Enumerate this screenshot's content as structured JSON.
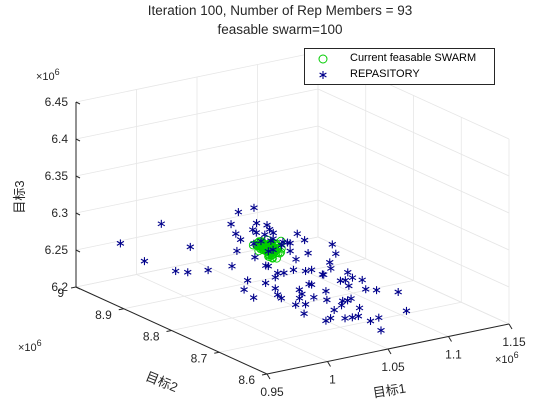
{
  "chart_data": {
    "type": "scatter",
    "view": "3d",
    "title": [
      "Iteration 100, Number of Rep Members = 93",
      "feasable swarm=100"
    ],
    "xlabel": "目标1",
    "ylabel": "目标2",
    "zlabel": "目标3",
    "x_multiplier": "×10^6",
    "y_multiplier": "×10^6",
    "z_multiplier": "×10^6",
    "xlim": [
      0.95,
      1.15
    ],
    "ylim": [
      8.6,
      9.0
    ],
    "zlim": [
      6.2,
      6.45
    ],
    "x_ticks": [
      "0.95",
      "1",
      "1.05",
      "1.1",
      "1.15"
    ],
    "y_ticks": [
      "8.6",
      "8.7",
      "8.8",
      "8.9",
      "9"
    ],
    "z_ticks": [
      "6.2",
      "6.25",
      "6.3",
      "6.35",
      "6.4",
      "6.45"
    ],
    "grid": true,
    "legend_position": "top-right",
    "series": [
      {
        "name": "Current feasable SWARM",
        "marker": "circle",
        "color": "#00cc00",
        "points": [
          [
            1.0384,
            8.7947,
            6.2926
          ],
          [
            1.0331,
            8.8039,
            6.2759
          ],
          [
            1.0277,
            8.7928,
            6.2793
          ],
          [
            1.0305,
            8.8154,
            6.2886
          ],
          [
            1.0309,
            8.8238,
            6.2845
          ],
          [
            1.0283,
            8.7888,
            6.2785
          ],
          [
            1.0349,
            8.8136,
            6.2753
          ],
          [
            1.0307,
            8.8173,
            6.2823
          ],
          [
            1.0275,
            8.8096,
            6.2912
          ],
          [
            1.0336,
            8.8204,
            6.2845
          ],
          [
            1.0371,
            8.7904,
            6.2842
          ],
          [
            1.0325,
            8.7936,
            6.2819
          ],
          [
            1.0267,
            8.8076,
            6.285
          ],
          [
            1.0363,
            8.8008,
            6.2866
          ],
          [
            1.0289,
            8.8188,
            6.2827
          ],
          [
            1.0291,
            8.8092,
            6.282
          ],
          [
            1.0253,
            8.8199,
            6.284
          ],
          [
            1.03,
            8.8158,
            6.2783
          ],
          [
            1.0326,
            8.7802,
            6.2838
          ],
          [
            1.0301,
            8.8165,
            6.2835
          ],
          [
            1.0262,
            8.7813,
            6.2772
          ],
          [
            1.0327,
            8.8124,
            6.2808
          ],
          [
            1.0337,
            8.8047,
            6.2856
          ],
          [
            1.0312,
            8.8018,
            6.274
          ],
          [
            1.0308,
            8.8018,
            6.2722
          ],
          [
            1.0332,
            8.8191,
            6.2811
          ],
          [
            1.0355,
            8.7999,
            6.2809
          ],
          [
            1.0314,
            8.8037,
            6.2856
          ],
          [
            1.0279,
            8.7865,
            6.2763
          ],
          [
            1.0294,
            8.7977,
            6.2905
          ],
          [
            1.0286,
            8.8087,
            6.2853
          ],
          [
            1.0317,
            8.8051,
            6.2799
          ],
          [
            1.0348,
            8.7996,
            6.2792
          ],
          [
            1.0302,
            8.8109,
            6.2851
          ],
          [
            1.03,
            8.8124,
            6.2862
          ],
          [
            1.0283,
            8.8038,
            6.2831
          ],
          [
            1.032,
            8.805,
            6.2871
          ],
          [
            1.0311,
            8.8024,
            6.2872
          ],
          [
            1.0305,
            8.7963,
            6.2797
          ],
          [
            1.0276,
            8.8186,
            6.2837
          ],
          [
            1.0316,
            8.8087,
            6.2771
          ],
          [
            1.0298,
            8.7997,
            6.279
          ],
          [
            1.0305,
            8.7836,
            6.2751
          ],
          [
            1.0302,
            8.8109,
            6.2788
          ],
          [
            1.0304,
            8.8028,
            6.2814
          ],
          [
            1.0337,
            8.7908,
            6.2855
          ],
          [
            1.0361,
            8.8093,
            6.2867
          ],
          [
            1.0319,
            8.8103,
            6.2779
          ],
          [
            1.0265,
            8.8007,
            6.2827
          ],
          [
            1.0287,
            8.8068,
            6.2802
          ],
          [
            1.036,
            8.7957,
            6.2868
          ],
          [
            1.0317,
            8.807,
            6.2823
          ],
          [
            1.036,
            8.8031,
            6.2774
          ],
          [
            1.0331,
            8.806,
            6.2758
          ],
          [
            1.0288,
            8.7987,
            6.2817
          ],
          [
            1.0325,
            8.7966,
            6.2844
          ],
          [
            1.0337,
            8.8075,
            6.2799
          ],
          [
            1.0336,
            8.7848,
            6.2804
          ],
          [
            1.0242,
            8.8048,
            6.2889
          ],
          [
            1.0311,
            8.7895,
            6.2823
          ],
          [
            1.0338,
            8.8069,
            6.2793
          ],
          [
            1.0302,
            8.8108,
            6.2851
          ],
          [
            1.0317,
            8.7882,
            6.2837
          ],
          [
            1.0314,
            8.8066,
            6.2814
          ],
          [
            1.0345,
            8.8029,
            6.287
          ],
          [
            1.0323,
            8.7849,
            6.2818
          ],
          [
            1.0298,
            8.7898,
            6.2791
          ],
          [
            1.0317,
            8.7985,
            6.2858
          ],
          [
            1.031,
            8.798,
            6.2897
          ],
          [
            1.0285,
            8.8079,
            6.2888
          ],
          [
            1.0292,
            8.8168,
            6.2805
          ],
          [
            1.0322,
            8.8054,
            6.2778
          ],
          [
            1.0325,
            8.7962,
            6.2763
          ],
          [
            1.0361,
            8.7973,
            6.2817
          ],
          [
            1.0307,
            8.8094,
            6.2838
          ],
          [
            1.0284,
            8.8141,
            6.2831
          ],
          [
            1.0345,
            8.7948,
            6.2903
          ],
          [
            1.0332,
            8.8072,
            6.2856
          ],
          [
            1.0309,
            8.786,
            6.2814
          ],
          [
            1.0306,
            8.7932,
            6.2766
          ],
          [
            1.0293,
            8.8016,
            6.2797
          ],
          [
            1.0302,
            8.7953,
            6.2785
          ],
          [
            1.0293,
            8.8056,
            6.2847
          ],
          [
            1.0261,
            8.7876,
            6.2776
          ],
          [
            1.0281,
            8.8154,
            6.2765
          ],
          [
            1.0344,
            8.806,
            6.284
          ],
          [
            1.0344,
            8.8019,
            6.281
          ],
          [
            1.0286,
            8.8075,
            6.2829
          ],
          [
            1.0367,
            8.7966,
            6.2822
          ],
          [
            1.0339,
            8.8108,
            6.2802
          ],
          [
            1.0291,
            8.8085,
            6.2802
          ],
          [
            1.0306,
            8.7931,
            6.284
          ],
          [
            1.0326,
            8.8041,
            6.2847
          ],
          [
            1.033,
            8.7967,
            6.2762
          ],
          [
            1.0322,
            8.7951,
            6.2807
          ],
          [
            1.0339,
            8.8007,
            6.2837
          ],
          [
            1.0331,
            8.8099,
            6.2913
          ],
          [
            1.0354,
            8.8047,
            6.2844
          ],
          [
            1.0274,
            8.8124,
            6.2904
          ],
          [
            1.0306,
            8.796,
            6.2835
          ]
        ]
      },
      {
        "name": "REPASITORY",
        "marker": "asterisk",
        "color": "#00008b",
        "points": [
          [
            0.965,
            8.945,
            6.27
          ],
          [
            0.975,
            8.92,
            6.25
          ],
          [
            0.985,
            8.88,
            6.245
          ],
          [
            0.995,
            8.88,
            6.24
          ],
          [
            0.985,
            8.91,
            6.3
          ],
          [
            1.005,
            8.9,
            6.265
          ],
          [
            1.015,
            8.83,
            6.3
          ],
          [
            1.0,
            8.85,
            6.25
          ],
          [
            1.01,
            8.8,
            6.235
          ],
          [
            1.02,
            8.76,
            6.245
          ],
          [
            1.025,
            8.82,
            6.305
          ],
          [
            1.02,
            8.79,
            6.3
          ],
          [
            1.015,
            8.84,
            6.31
          ],
          [
            1.02,
            8.76,
            6.26
          ],
          [
            1.03,
            8.83,
            6.33
          ],
          [
            1.01,
            8.78,
            6.23
          ],
          [
            1.035,
            8.69,
            6.245
          ],
          [
            1.045,
            8.76,
            6.26
          ],
          [
            1.04,
            8.73,
            6.235
          ],
          [
            1.05,
            8.76,
            6.24
          ],
          [
            1.052,
            8.81,
            6.27
          ],
          [
            1.05,
            8.79,
            6.3
          ],
          [
            1.05,
            8.82,
            6.28
          ],
          [
            1.04,
            8.85,
            6.3
          ],
          [
            1.06,
            8.76,
            6.25
          ],
          [
            1.035,
            8.81,
            6.305
          ],
          [
            1.045,
            8.81,
            6.28
          ],
          [
            1.055,
            8.71,
            6.225
          ],
          [
            1.065,
            8.72,
            6.245
          ],
          [
            1.06,
            8.71,
            6.23
          ],
          [
            1.04,
            8.76,
            6.225
          ],
          [
            1.045,
            8.76,
            6.215
          ],
          [
            1.05,
            8.73,
            6.2
          ],
          [
            1.06,
            8.7,
            6.21
          ],
          [
            1.06,
            8.8,
            6.285
          ],
          [
            1.07,
            8.76,
            6.275
          ],
          [
            1.07,
            8.74,
            6.245
          ],
          [
            1.08,
            8.7,
            6.24
          ],
          [
            1.09,
            8.68,
            6.24
          ],
          [
            1.085,
            8.65,
            6.225
          ],
          [
            1.075,
            8.7,
            6.2
          ],
          [
            1.075,
            8.78,
            6.28
          ],
          [
            1.065,
            8.7,
            6.21
          ],
          [
            1.06,
            8.64,
            6.21
          ],
          [
            1.055,
            8.69,
            6.24
          ],
          [
            1.05,
            8.73,
            6.24
          ],
          [
            1.035,
            8.78,
            6.255
          ],
          [
            1.04,
            8.82,
            6.285
          ],
          [
            1.03,
            8.8,
            6.26
          ],
          [
            1.025,
            8.76,
            6.23
          ],
          [
            1.02,
            8.78,
            6.27
          ],
          [
            1.015,
            8.79,
            6.28
          ],
          [
            1.03,
            8.79,
            6.3
          ],
          [
            1.025,
            8.85,
            6.32
          ],
          [
            1.025,
            8.79,
            6.32
          ],
          [
            1.03,
            8.8,
            6.28
          ],
          [
            1.038,
            8.78,
            6.295
          ],
          [
            1.03,
            8.79,
            6.285
          ],
          [
            1.022,
            8.76,
            6.265
          ],
          [
            1.045,
            8.78,
            6.27
          ],
          [
            1.042,
            8.76,
            6.23
          ],
          [
            1.05,
            8.76,
            6.26
          ],
          [
            1.055,
            8.75,
            6.255
          ],
          [
            1.062,
            8.73,
            6.25
          ],
          [
            1.058,
            8.74,
            6.265
          ],
          [
            1.068,
            8.72,
            6.255
          ],
          [
            1.075,
            8.71,
            6.24
          ],
          [
            1.062,
            8.69,
            6.225
          ],
          [
            1.07,
            8.67,
            6.215
          ],
          [
            1.052,
            8.7,
            6.235
          ],
          [
            1.045,
            8.7,
            6.225
          ],
          [
            1.05,
            8.69,
            6.215
          ],
          [
            1.035,
            8.76,
            6.265
          ],
          [
            1.032,
            8.74,
            6.245
          ],
          [
            1.04,
            8.74,
            6.25
          ],
          [
            1.042,
            8.7,
            6.215
          ],
          [
            1.025,
            8.73,
            6.23
          ],
          [
            1.028,
            8.72,
            6.22
          ],
          [
            1.018,
            8.75,
            6.24
          ],
          [
            1.012,
            8.76,
            6.255
          ],
          [
            1.005,
            8.78,
            6.255
          ],
          [
            1.0,
            8.8,
            6.27
          ],
          [
            1.008,
            8.81,
            6.285
          ],
          [
            1.015,
            8.82,
            6.295
          ],
          [
            1.022,
            8.81,
            6.29
          ],
          [
            1.028,
            8.82,
            6.3
          ],
          [
            1.035,
            8.82,
            6.295
          ],
          [
            1.042,
            8.82,
            6.295
          ],
          [
            1.048,
            8.8,
            6.285
          ],
          [
            1.055,
            8.78,
            6.275
          ],
          [
            1.065,
            8.76,
            6.265
          ],
          [
            1.072,
            8.74,
            6.255
          ],
          [
            1.08,
            8.73,
            6.245
          ]
        ]
      }
    ]
  },
  "legend": {
    "items": [
      {
        "label": "Current feasable SWARM",
        "marker": "circle",
        "color": "#00cc00"
      },
      {
        "label": "REPASITORY",
        "marker": "asterisk",
        "color": "#00008b"
      }
    ]
  }
}
